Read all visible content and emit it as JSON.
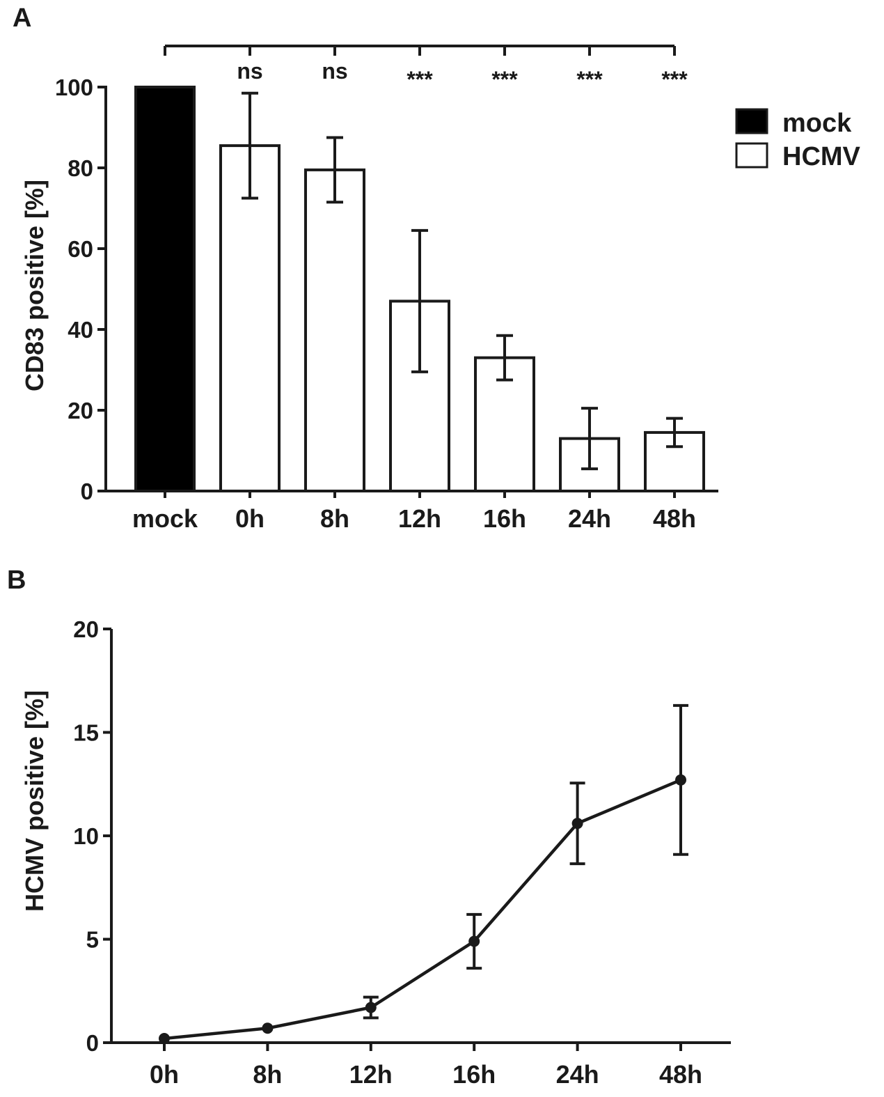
{
  "chart_data": [
    {
      "panel_label": "A",
      "type": "bar",
      "ylabel": "CD83 positive [%]",
      "ylim": [
        0,
        100
      ],
      "yticks": [
        "0",
        "20",
        "40",
        "60",
        "80",
        "100"
      ],
      "categories": [
        "mock",
        "0h",
        "8h",
        "12h",
        "16h",
        "24h",
        "48h"
      ],
      "groups": [
        "mock",
        "HCMV",
        "HCMV",
        "HCMV",
        "HCMV",
        "HCMV",
        "HCMV"
      ],
      "values": [
        100,
        85.5,
        79.5,
        47,
        33,
        13,
        14.5
      ],
      "errors": [
        0,
        13,
        8,
        17.5,
        5.5,
        7.5,
        3.5
      ],
      "significance": [
        "",
        "ns",
        "ns",
        "***",
        "***",
        "***",
        "***"
      ],
      "legend": [
        {
          "label": "mock",
          "fill": "#000000"
        },
        {
          "label": "HCMV",
          "fill": "#ffffff"
        }
      ],
      "legend_position": "top-right"
    },
    {
      "panel_label": "B",
      "type": "line",
      "ylabel": "HCMV positive [%]",
      "ylim": [
        0,
        20
      ],
      "yticks": [
        "0",
        "5",
        "10",
        "15",
        "20"
      ],
      "categories": [
        "0h",
        "8h",
        "12h",
        "16h",
        "24h",
        "48h"
      ],
      "values": [
        0.2,
        0.7,
        1.7,
        4.9,
        10.6,
        12.7
      ],
      "errors": [
        0,
        0,
        0.5,
        1.3,
        1.95,
        3.6
      ]
    }
  ],
  "colors": {
    "ink": "#1a1a1a",
    "mock_fill": "#000000",
    "hcmv_fill": "#ffffff"
  }
}
